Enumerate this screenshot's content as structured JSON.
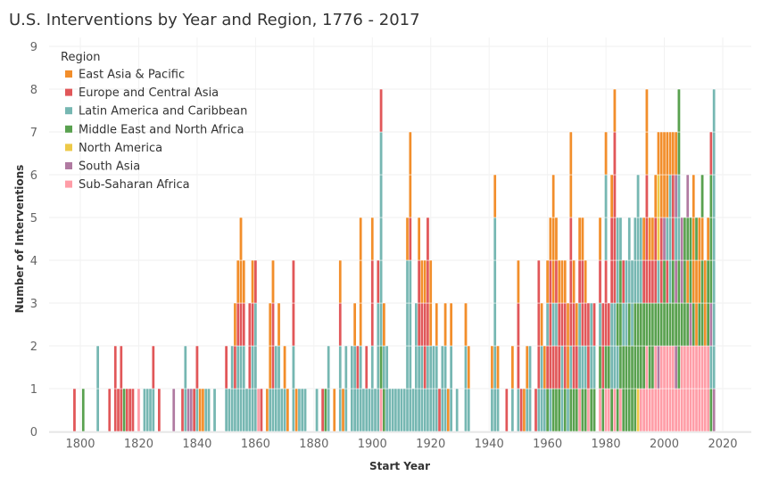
{
  "chart_data": {
    "type": "bar",
    "stacked": true,
    "title": "U.S. Interventions by Year and Region, 1776 - 2017",
    "xlabel": "Start Year",
    "ylabel": "Number of Interventions",
    "ylim": [
      0,
      9
    ],
    "xlim": [
      1785,
      2025
    ],
    "yticks": [
      "0",
      "1",
      "2",
      "3",
      "4",
      "5",
      "6",
      "7",
      "8",
      "9"
    ],
    "xticks": [
      "1800",
      "1820",
      "1840",
      "1860",
      "1880",
      "1900",
      "1920",
      "1940",
      "1960",
      "1980",
      "2000",
      "2020"
    ],
    "grid": true,
    "legend": {
      "title": "Region",
      "placement": "top-left",
      "entries": [
        {
          "code": "E",
          "name": "East Asia & Pacific",
          "color": "#f28e2b"
        },
        {
          "code": "C",
          "name": "Europe and Central Asia",
          "color": "#e15759"
        },
        {
          "code": "L",
          "name": "Latin America and Caribbean",
          "color": "#76b7b2"
        },
        {
          "code": "M",
          "name": "Middle East and North Africa",
          "color": "#59a14f"
        },
        {
          "code": "N",
          "name": "North America",
          "color": "#edc948"
        },
        {
          "code": "S",
          "name": "South Asia",
          "color": "#b07aa1"
        },
        {
          "code": "A",
          "name": "Sub-Saharan Africa",
          "color": "#ff9da7"
        }
      ]
    },
    "series_note": "Each year's value is a bottom-to-top stack of region codes (one code per intervention).",
    "years": [
      [
        1798,
        "C"
      ],
      [
        1801,
        "M"
      ],
      [
        1806,
        "LL"
      ],
      [
        1810,
        "C"
      ],
      [
        1812,
        "CC"
      ],
      [
        1813,
        "C"
      ],
      [
        1814,
        "CC"
      ],
      [
        1815,
        "M"
      ],
      [
        1816,
        "C"
      ],
      [
        1817,
        "C"
      ],
      [
        1818,
        "C"
      ],
      [
        1820,
        "A"
      ],
      [
        1822,
        "L"
      ],
      [
        1823,
        "L"
      ],
      [
        1824,
        "L"
      ],
      [
        1825,
        "LC"
      ],
      [
        1827,
        "C"
      ],
      [
        1832,
        "S"
      ],
      [
        1835,
        "C"
      ],
      [
        1836,
        "LL"
      ],
      [
        1837,
        "S"
      ],
      [
        1838,
        "S"
      ],
      [
        1839,
        "C"
      ],
      [
        1840,
        "LC"
      ],
      [
        1841,
        "E"
      ],
      [
        1842,
        "E"
      ],
      [
        1843,
        "L"
      ],
      [
        1844,
        "L"
      ],
      [
        1846,
        "L"
      ],
      [
        1850,
        "LC"
      ],
      [
        1851,
        "L"
      ],
      [
        1852,
        "LL"
      ],
      [
        1853,
        "LCE"
      ],
      [
        1854,
        "LLCE"
      ],
      [
        1855,
        "LLCEE"
      ],
      [
        1856,
        "LLCE"
      ],
      [
        1857,
        "L"
      ],
      [
        1858,
        "LCC"
      ],
      [
        1859,
        "LLCE"
      ],
      [
        1860,
        "LLLC"
      ],
      [
        1861,
        "A"
      ],
      [
        1862,
        "C"
      ],
      [
        1864,
        "E"
      ],
      [
        1865,
        "LEE"
      ],
      [
        1866,
        "LCCE"
      ],
      [
        1867,
        "LL"
      ],
      [
        1868,
        "LLE"
      ],
      [
        1869,
        "L"
      ],
      [
        1870,
        "LE"
      ],
      [
        1871,
        "E"
      ],
      [
        1873,
        "LLCC"
      ],
      [
        1874,
        "E"
      ],
      [
        1875,
        "L"
      ],
      [
        1876,
        "L"
      ],
      [
        1877,
        "L"
      ],
      [
        1881,
        "L"
      ],
      [
        1883,
        "C"
      ],
      [
        1884,
        "M"
      ],
      [
        1885,
        "LL"
      ],
      [
        1887,
        "E"
      ],
      [
        1889,
        "LLCE"
      ],
      [
        1890,
        "E"
      ],
      [
        1891,
        "LL"
      ],
      [
        1893,
        "LL"
      ],
      [
        1894,
        "LLE"
      ],
      [
        1895,
        "LC"
      ],
      [
        1896,
        "LLEEE"
      ],
      [
        1897,
        "L"
      ],
      [
        1898,
        "LC"
      ],
      [
        1899,
        "L"
      ],
      [
        1900,
        "LLCCE"
      ],
      [
        1901,
        "L"
      ],
      [
        1902,
        "LLLC"
      ],
      [
        1903,
        "AMLLLLLC"
      ],
      [
        1904,
        "MLE"
      ],
      [
        1905,
        "LL"
      ],
      [
        1906,
        "L"
      ],
      [
        1907,
        "L"
      ],
      [
        1908,
        "L"
      ],
      [
        1909,
        "L"
      ],
      [
        1910,
        "L"
      ],
      [
        1911,
        "L"
      ],
      [
        1912,
        "LLLLE"
      ],
      [
        1913,
        "LLLLCEE"
      ],
      [
        1914,
        "L"
      ],
      [
        1915,
        "LLL"
      ],
      [
        1916,
        "LLCCE"
      ],
      [
        1917,
        "LLCE"
      ],
      [
        1918,
        "LCCE"
      ],
      [
        1919,
        "LLCCC"
      ],
      [
        1920,
        "LLEE"
      ],
      [
        1921,
        "LL"
      ],
      [
        1922,
        "LLE"
      ],
      [
        1923,
        "C"
      ],
      [
        1924,
        "LL"
      ],
      [
        1925,
        "LLE"
      ],
      [
        1926,
        "E"
      ],
      [
        1927,
        "LLE"
      ],
      [
        1929,
        "L"
      ],
      [
        1932,
        "LLE"
      ],
      [
        1933,
        "LE"
      ],
      [
        1941,
        "LE"
      ],
      [
        1942,
        "LLLLLE"
      ],
      [
        1943,
        "LE"
      ],
      [
        1946,
        "C"
      ],
      [
        1948,
        "LE"
      ],
      [
        1950,
        "LCCE"
      ],
      [
        1951,
        "C"
      ],
      [
        1952,
        "E"
      ],
      [
        1953,
        "LE"
      ],
      [
        1954,
        "LL"
      ],
      [
        1956,
        "C"
      ],
      [
        1957,
        "LCCC"
      ],
      [
        1958,
        "LLE"
      ],
      [
        1959,
        "LE"
      ],
      [
        1960,
        "MCLE"
      ],
      [
        1961,
        "LCCCE"
      ],
      [
        1962,
        "MCLEEE"
      ],
      [
        1963,
        "MCLCE"
      ],
      [
        1964,
        "MCCE"
      ],
      [
        1965,
        "LLCE"
      ],
      [
        1966,
        "MCCE"
      ],
      [
        1967,
        "LEE"
      ],
      [
        1968,
        "MLCCCEE"
      ],
      [
        1969,
        "MCCE"
      ],
      [
        1970,
        "MCE"
      ],
      [
        1971,
        "ALLCE"
      ],
      [
        1972,
        "MLCCE"
      ],
      [
        1973,
        "MLCE"
      ],
      [
        1974,
        "ACC"
      ],
      [
        1975,
        "MLL"
      ],
      [
        1976,
        "MLC"
      ],
      [
        1978,
        "AMLCE"
      ],
      [
        1979,
        "MCC"
      ],
      [
        1980,
        "AMCCLLE"
      ],
      [
        1981,
        "AMC"
      ],
      [
        1982,
        "MLLCCE"
      ],
      [
        1983,
        "ALLCCCCE"
      ],
      [
        1984,
        "MLMLL"
      ],
      [
        1985,
        "AMMML"
      ],
      [
        1986,
        "MMLC"
      ],
      [
        1987,
        "MMLL"
      ],
      [
        1988,
        "MMMLL"
      ],
      [
        1989,
        "MMLL"
      ],
      [
        1990,
        "MMMLL"
      ],
      [
        1991,
        "NMMLLL"
      ],
      [
        1992,
        "AMMLL"
      ],
      [
        1993,
        "AMMCE"
      ],
      [
        1994,
        "AAMCCCEE"
      ],
      [
        1995,
        "AMMCE"
      ],
      [
        1996,
        "AMMCE"
      ],
      [
        1997,
        "AAMCCE"
      ],
      [
        1998,
        "ASMLNNE"
      ],
      [
        1999,
        "AAMCCEE"
      ],
      [
        2000,
        "AAMMSEE"
      ],
      [
        2001,
        "AAMCLEE"
      ],
      [
        2002,
        "AAMLLLE"
      ],
      [
        2003,
        "AAMMCCE"
      ],
      [
        2004,
        "ASMSLSE"
      ],
      [
        2005,
        "AMMMLLMM"
      ],
      [
        2006,
        "AAMSS"
      ],
      [
        2007,
        "AAMMM"
      ],
      [
        2008,
        "AAMEMS"
      ],
      [
        2009,
        "AASMM"
      ],
      [
        2010,
        "AAMEEE"
      ],
      [
        2011,
        "AAEEM"
      ],
      [
        2012,
        "AAMEE"
      ],
      [
        2013,
        "AAMMEM"
      ],
      [
        2014,
        "AAEE"
      ],
      [
        2015,
        "AAMME"
      ],
      [
        2016,
        "MLSMMMC"
      ],
      [
        2017,
        "SLLLLLLL"
      ]
    ]
  }
}
